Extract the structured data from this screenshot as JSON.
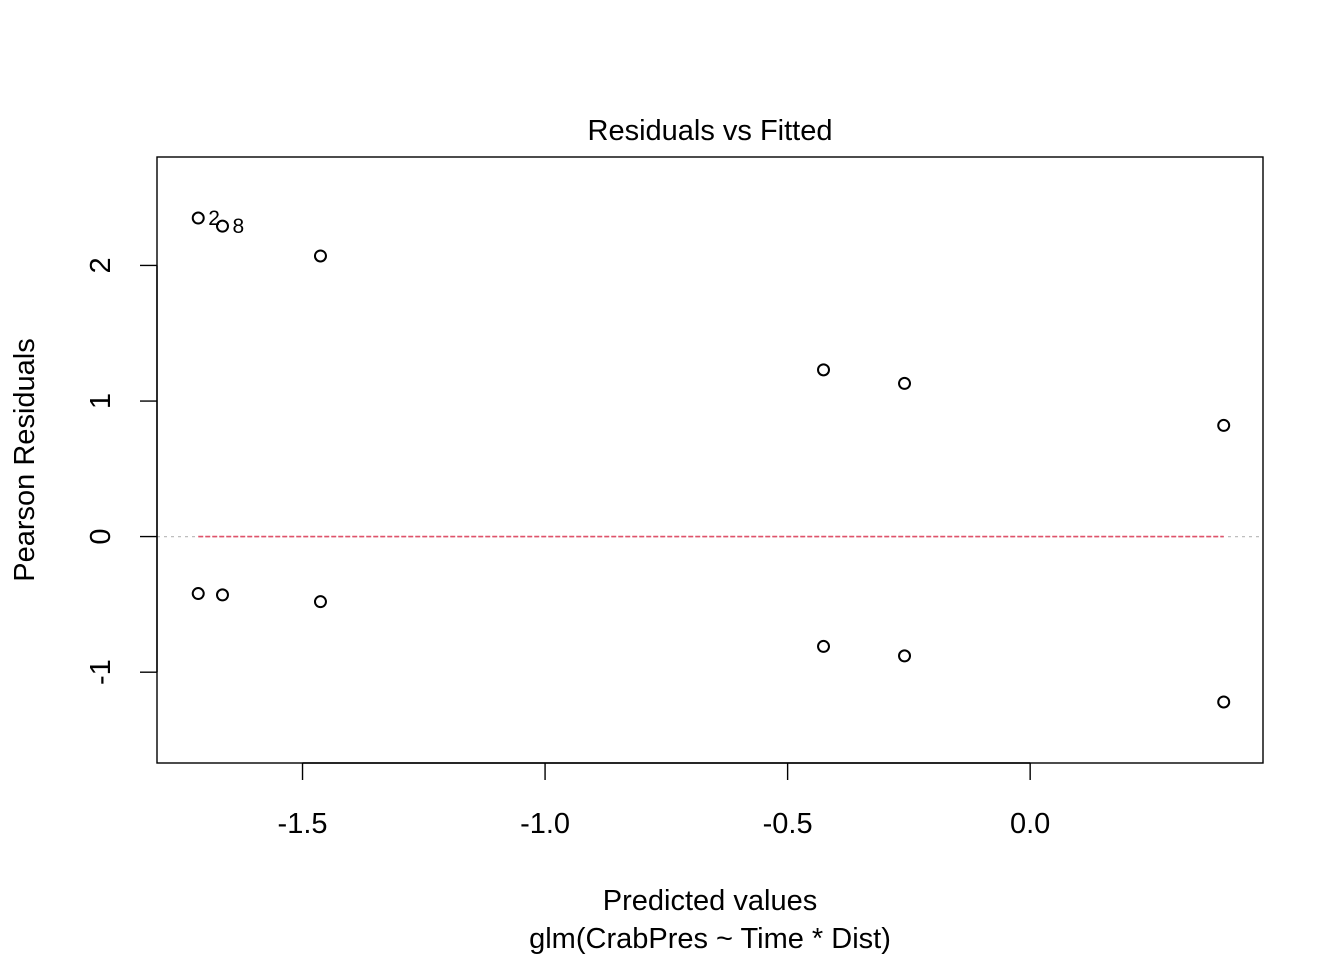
{
  "chart_data": {
    "type": "scatter",
    "title": "Residuals vs Fitted",
    "xlabel": "Predicted values",
    "xsublabel": "glm(CrabPres ~ Time * Dist)",
    "ylabel": "Pearson Residuals",
    "xlim": [
      -1.8,
      0.48
    ],
    "ylim": [
      -1.67,
      2.8
    ],
    "xticks": [
      -1.5,
      -1.0,
      -0.5,
      0.0
    ],
    "xtick_labels": [
      "-1.5",
      "-1.0",
      "-0.5",
      "0.0"
    ],
    "yticks": [
      -1,
      0,
      1,
      2
    ],
    "ytick_labels": [
      "-1",
      "0",
      "1",
      "2"
    ],
    "grid": false,
    "points": [
      {
        "x": -1.715,
        "y": 2.35,
        "label": "2"
      },
      {
        "x": -1.665,
        "y": 2.29,
        "label": "8"
      },
      {
        "x": -1.463,
        "y": 2.07,
        "label": ""
      },
      {
        "x": -0.426,
        "y": 1.23,
        "label": ""
      },
      {
        "x": -0.259,
        "y": 1.13,
        "label": ""
      },
      {
        "x": 0.399,
        "y": 0.82,
        "label": ""
      },
      {
        "x": -1.715,
        "y": -0.42,
        "label": ""
      },
      {
        "x": -1.665,
        "y": -0.43,
        "label": ""
      },
      {
        "x": -1.463,
        "y": -0.48,
        "label": ""
      },
      {
        "x": -0.426,
        "y": -0.81,
        "label": ""
      },
      {
        "x": -0.259,
        "y": -0.88,
        "label": ""
      },
      {
        "x": 0.399,
        "y": -1.22,
        "label": ""
      }
    ],
    "reference_line": {
      "y": 0,
      "style": "dotted",
      "color": "#bebebe"
    },
    "smooth_line": {
      "x": [
        -1.715,
        0.399
      ],
      "y": [
        0,
        0
      ],
      "style": "dashed",
      "color": "#DF536B"
    }
  }
}
